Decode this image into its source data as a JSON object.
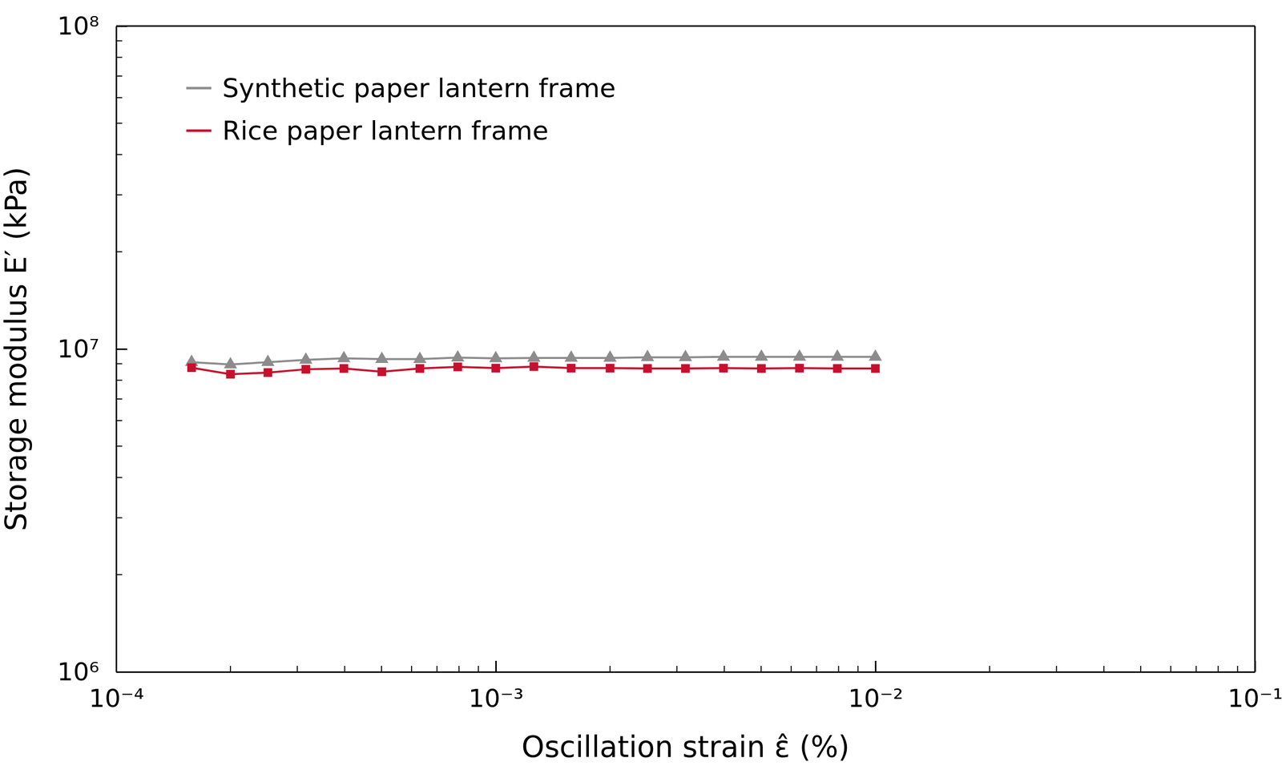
{
  "chart_data": {
    "type": "line",
    "x_label": "Oscillation strain ε̂ (%)",
    "y_label": "Storage modulus E′ (kPa)",
    "log": true,
    "legend": "top-left",
    "x": [
      0.000158,
      0.0002,
      0.000251,
      0.000316,
      0.000398,
      0.000501,
      0.000631,
      0.000794,
      0.001,
      0.00126,
      0.00158,
      0.002,
      0.00251,
      0.00316,
      0.00398,
      0.00501,
      0.00631,
      0.00794,
      0.01
    ],
    "series": [
      {
        "name": "Synthetic paper lantern frame",
        "color": "#8c8c8c",
        "marker": "triangle",
        "values": [
          9100000,
          8950000,
          9100000,
          9250000,
          9350000,
          9300000,
          9300000,
          9400000,
          9350000,
          9380000,
          9380000,
          9380000,
          9420000,
          9420000,
          9450000,
          9450000,
          9450000,
          9450000,
          9450000
        ]
      },
      {
        "name": "Rice paper lantern frame",
        "color": "#c8102e",
        "marker": "square",
        "values": [
          8750000,
          8350000,
          8450000,
          8650000,
          8700000,
          8500000,
          8700000,
          8800000,
          8720000,
          8820000,
          8720000,
          8720000,
          8700000,
          8700000,
          8720000,
          8700000,
          8720000,
          8700000,
          8700000
        ]
      }
    ],
    "xlim": [
      0.0001,
      0.1
    ],
    "xticks": [
      {
        "value": 0.0001,
        "label": "10⁻⁴"
      },
      {
        "value": 0.001,
        "label": "10⁻³"
      },
      {
        "value": 0.01,
        "label": "10⁻²"
      },
      {
        "value": 0.1,
        "label": "10⁻¹"
      }
    ],
    "ylim": [
      1000000,
      100000000
    ],
    "yticks": [
      {
        "value": 1000000,
        "label": "10⁶"
      },
      {
        "value": 10000000,
        "label": "10⁷"
      },
      {
        "value": 100000000,
        "label": "10⁸"
      }
    ]
  }
}
